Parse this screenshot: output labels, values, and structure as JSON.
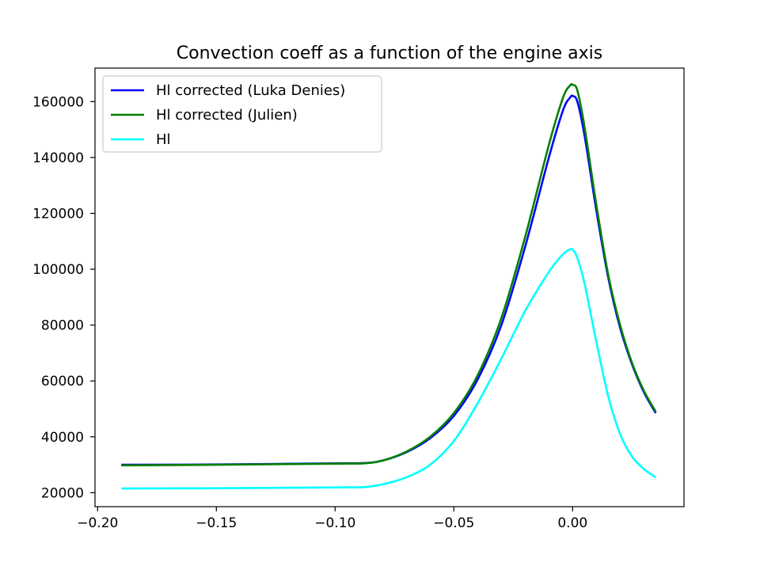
{
  "chart_data": {
    "type": "line",
    "title": "Convection coeff as a function of the engine axis",
    "xlabel": "",
    "ylabel": "",
    "xlim": [
      -0.2011,
      0.0469
    ],
    "ylim": [
      15000,
      172000
    ],
    "xticks": [
      -0.2,
      -0.15,
      -0.1,
      -0.05,
      0.0
    ],
    "xtick_labels": [
      "−0.20",
      "−0.15",
      "−0.10",
      "−0.05",
      "0.00"
    ],
    "yticks": [
      20000,
      40000,
      60000,
      80000,
      100000,
      120000,
      140000,
      160000
    ],
    "ytick_labels": [
      "20000",
      "40000",
      "60000",
      "80000",
      "100000",
      "120000",
      "140000",
      "160000"
    ],
    "grid": false,
    "legend_position": "top-left",
    "series": [
      {
        "name": "Hl corrected (Luka Denies)",
        "color": "#0000ff",
        "x": [
          -0.19,
          -0.15,
          -0.1,
          -0.088,
          -0.08,
          -0.07,
          -0.06,
          -0.05,
          -0.04,
          -0.03,
          -0.02,
          -0.01,
          -0.004,
          -0.001,
          0.0,
          0.002,
          0.005,
          0.01,
          0.015,
          0.02,
          0.025,
          0.03,
          0.035
        ],
        "y": [
          30000,
          30100,
          30500,
          30600,
          31500,
          34500,
          39500,
          47500,
          60500,
          80000,
          108000,
          140000,
          157000,
          161500,
          162000,
          160000,
          148000,
          121000,
          97000,
          79000,
          66000,
          56000,
          48500
        ]
      },
      {
        "name": "Hl corrected (Julien)",
        "color": "#008000",
        "x": [
          -0.19,
          -0.15,
          -0.1,
          -0.088,
          -0.08,
          -0.07,
          -0.06,
          -0.05,
          -0.04,
          -0.03,
          -0.02,
          -0.01,
          -0.004,
          -0.001,
          0.0,
          0.002,
          0.005,
          0.01,
          0.015,
          0.02,
          0.025,
          0.03,
          0.035
        ],
        "y": [
          29800,
          30000,
          30400,
          30500,
          31500,
          34700,
          40000,
          48500,
          62000,
          82500,
          111500,
          144500,
          161500,
          165800,
          166000,
          164000,
          151000,
          123000,
          98000,
          80000,
          66500,
          56500,
          49000
        ]
      },
      {
        "name": "Hl",
        "color": "#00ffff",
        "x": [
          -0.19,
          -0.15,
          -0.1,
          -0.088,
          -0.08,
          -0.07,
          -0.06,
          -0.05,
          -0.04,
          -0.03,
          -0.02,
          -0.01,
          -0.005,
          -0.002,
          0.0,
          0.002,
          0.005,
          0.01,
          0.015,
          0.02,
          0.025,
          0.03,
          0.035
        ],
        "y": [
          21500,
          21600,
          21900,
          22000,
          23000,
          25500,
          30000,
          38500,
          52000,
          68000,
          85000,
          99000,
          104500,
          106700,
          107000,
          104000,
          95000,
          74000,
          54500,
          41000,
          33000,
          28500,
          25500
        ]
      }
    ]
  }
}
